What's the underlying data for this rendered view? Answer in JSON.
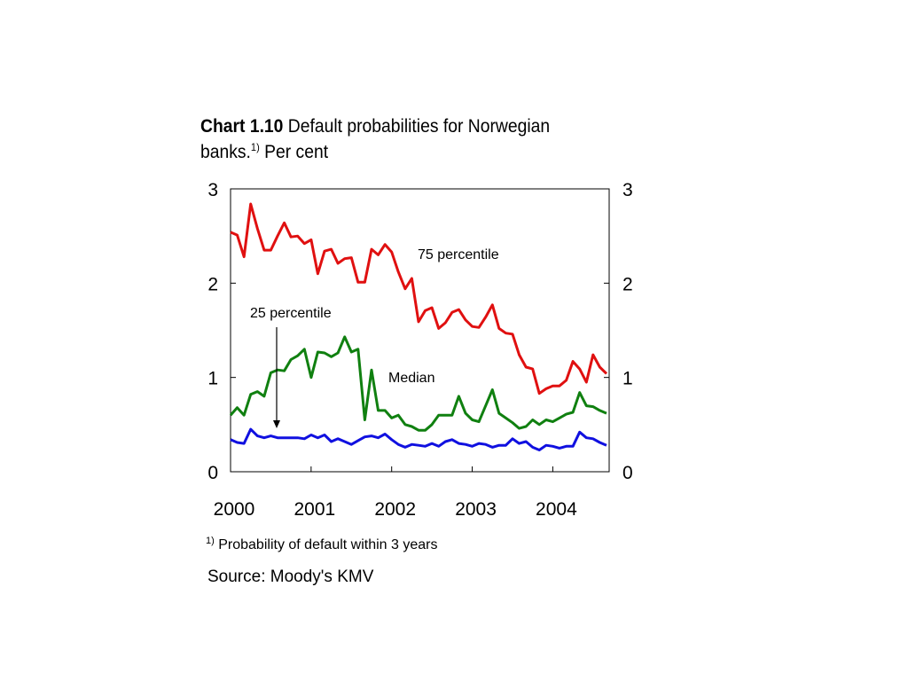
{
  "chart_data": {
    "type": "line",
    "title_bold": "Chart 1.10",
    "title_rest_line1": "Default probabilities for Norwegian",
    "title_line2_prefix": "banks.",
    "title_sup": "1)",
    "title_line2_suffix": "Per cent",
    "xlabel": "",
    "ylabel": "",
    "xlim": [
      2000.0,
      2004.7
    ],
    "ylim": [
      0,
      3
    ],
    "x_ticks": [
      "2000",
      "2001",
      "2002",
      "2003",
      "2004"
    ],
    "y_ticks_left": [
      "0",
      "1",
      "2",
      "3"
    ],
    "y_ticks_right": [
      "0",
      "1",
      "2",
      "3"
    ],
    "grid": false,
    "series": [
      {
        "name": "75 percentile",
        "color": "#e01010",
        "x": [
          2000.0,
          2000.083,
          2000.167,
          2000.25,
          2000.333,
          2000.417,
          2000.5,
          2000.583,
          2000.667,
          2000.75,
          2000.833,
          2000.917,
          2001.0,
          2001.083,
          2001.167,
          2001.25,
          2001.333,
          2001.417,
          2001.5,
          2001.583,
          2001.667,
          2001.75,
          2001.833,
          2001.917,
          2002.0,
          2002.083,
          2002.167,
          2002.25,
          2002.333,
          2002.417,
          2002.5,
          2002.583,
          2002.667,
          2002.75,
          2002.833,
          2002.917,
          2003.0,
          2003.083,
          2003.167,
          2003.25,
          2003.333,
          2003.417,
          2003.5,
          2003.583,
          2003.667,
          2003.75,
          2003.833,
          2003.917,
          2004.0,
          2004.083,
          2004.167,
          2004.25,
          2004.333,
          2004.417,
          2004.5,
          2004.583,
          2004.667
        ],
        "values": [
          2.54,
          2.51,
          2.28,
          2.84,
          2.58,
          2.35,
          2.35,
          2.5,
          2.64,
          2.49,
          2.5,
          2.42,
          2.46,
          2.1,
          2.34,
          2.36,
          2.21,
          2.26,
          2.27,
          2.01,
          2.01,
          2.36,
          2.3,
          2.41,
          2.33,
          2.12,
          1.94,
          2.05,
          1.59,
          1.71,
          1.74,
          1.52,
          1.58,
          1.69,
          1.72,
          1.61,
          1.54,
          1.53,
          1.64,
          1.77,
          1.52,
          1.47,
          1.46,
          1.24,
          1.11,
          1.09,
          0.83,
          0.88,
          0.91,
          0.91,
          0.97,
          1.17,
          1.09,
          0.95,
          1.24,
          1.11,
          1.04
        ]
      },
      {
        "name": "Median",
        "color": "#108010",
        "x": [
          2000.0,
          2000.083,
          2000.167,
          2000.25,
          2000.333,
          2000.417,
          2000.5,
          2000.583,
          2000.667,
          2000.75,
          2000.833,
          2000.917,
          2001.0,
          2001.083,
          2001.167,
          2001.25,
          2001.333,
          2001.417,
          2001.5,
          2001.583,
          2001.667,
          2001.75,
          2001.833,
          2001.917,
          2002.0,
          2002.083,
          2002.167,
          2002.25,
          2002.333,
          2002.417,
          2002.5,
          2002.583,
          2002.667,
          2002.75,
          2002.833,
          2002.917,
          2003.0,
          2003.083,
          2003.167,
          2003.25,
          2003.333,
          2003.417,
          2003.5,
          2003.583,
          2003.667,
          2003.75,
          2003.833,
          2003.917,
          2004.0,
          2004.083,
          2004.167,
          2004.25,
          2004.333,
          2004.417,
          2004.5,
          2004.583,
          2004.667
        ],
        "values": [
          0.6,
          0.68,
          0.6,
          0.82,
          0.85,
          0.8,
          1.05,
          1.08,
          1.07,
          1.19,
          1.23,
          1.3,
          1.0,
          1.27,
          1.26,
          1.22,
          1.26,
          1.43,
          1.27,
          1.3,
          0.55,
          1.08,
          0.65,
          0.65,
          0.57,
          0.6,
          0.5,
          0.48,
          0.44,
          0.44,
          0.5,
          0.6,
          0.6,
          0.6,
          0.8,
          0.62,
          0.55,
          0.53,
          0.7,
          0.87,
          0.62,
          0.57,
          0.52,
          0.46,
          0.48,
          0.55,
          0.5,
          0.55,
          0.53,
          0.57,
          0.61,
          0.63,
          0.84,
          0.7,
          0.69,
          0.65,
          0.62
        ]
      },
      {
        "name": "25 percentile",
        "color": "#1010e0",
        "x": [
          2000.0,
          2000.083,
          2000.167,
          2000.25,
          2000.333,
          2000.417,
          2000.5,
          2000.583,
          2000.667,
          2000.75,
          2000.833,
          2000.917,
          2001.0,
          2001.083,
          2001.167,
          2001.25,
          2001.333,
          2001.417,
          2001.5,
          2001.583,
          2001.667,
          2001.75,
          2001.833,
          2001.917,
          2002.0,
          2002.083,
          2002.167,
          2002.25,
          2002.333,
          2002.417,
          2002.5,
          2002.583,
          2002.667,
          2002.75,
          2002.833,
          2002.917,
          2003.0,
          2003.083,
          2003.167,
          2003.25,
          2003.333,
          2003.417,
          2003.5,
          2003.583,
          2003.667,
          2003.75,
          2003.833,
          2003.917,
          2004.0,
          2004.083,
          2004.167,
          2004.25,
          2004.333,
          2004.417,
          2004.5,
          2004.583,
          2004.667
        ],
        "values": [
          0.34,
          0.31,
          0.3,
          0.45,
          0.38,
          0.36,
          0.38,
          0.36,
          0.36,
          0.36,
          0.36,
          0.35,
          0.39,
          0.36,
          0.39,
          0.32,
          0.35,
          0.32,
          0.29,
          0.33,
          0.37,
          0.38,
          0.36,
          0.4,
          0.34,
          0.29,
          0.26,
          0.29,
          0.28,
          0.27,
          0.3,
          0.27,
          0.32,
          0.34,
          0.3,
          0.29,
          0.27,
          0.3,
          0.29,
          0.26,
          0.28,
          0.28,
          0.35,
          0.3,
          0.32,
          0.26,
          0.23,
          0.28,
          0.27,
          0.25,
          0.27,
          0.27,
          0.42,
          0.36,
          0.35,
          0.31,
          0.28
        ]
      }
    ],
    "annotations": {
      "p75": "75 percentile",
      "median": "Median",
      "p25": "25 percentile"
    },
    "footnote_sup": "1)",
    "footnote_text": "Probability of default within 3 years",
    "source": "Source: Moody's KMV"
  }
}
